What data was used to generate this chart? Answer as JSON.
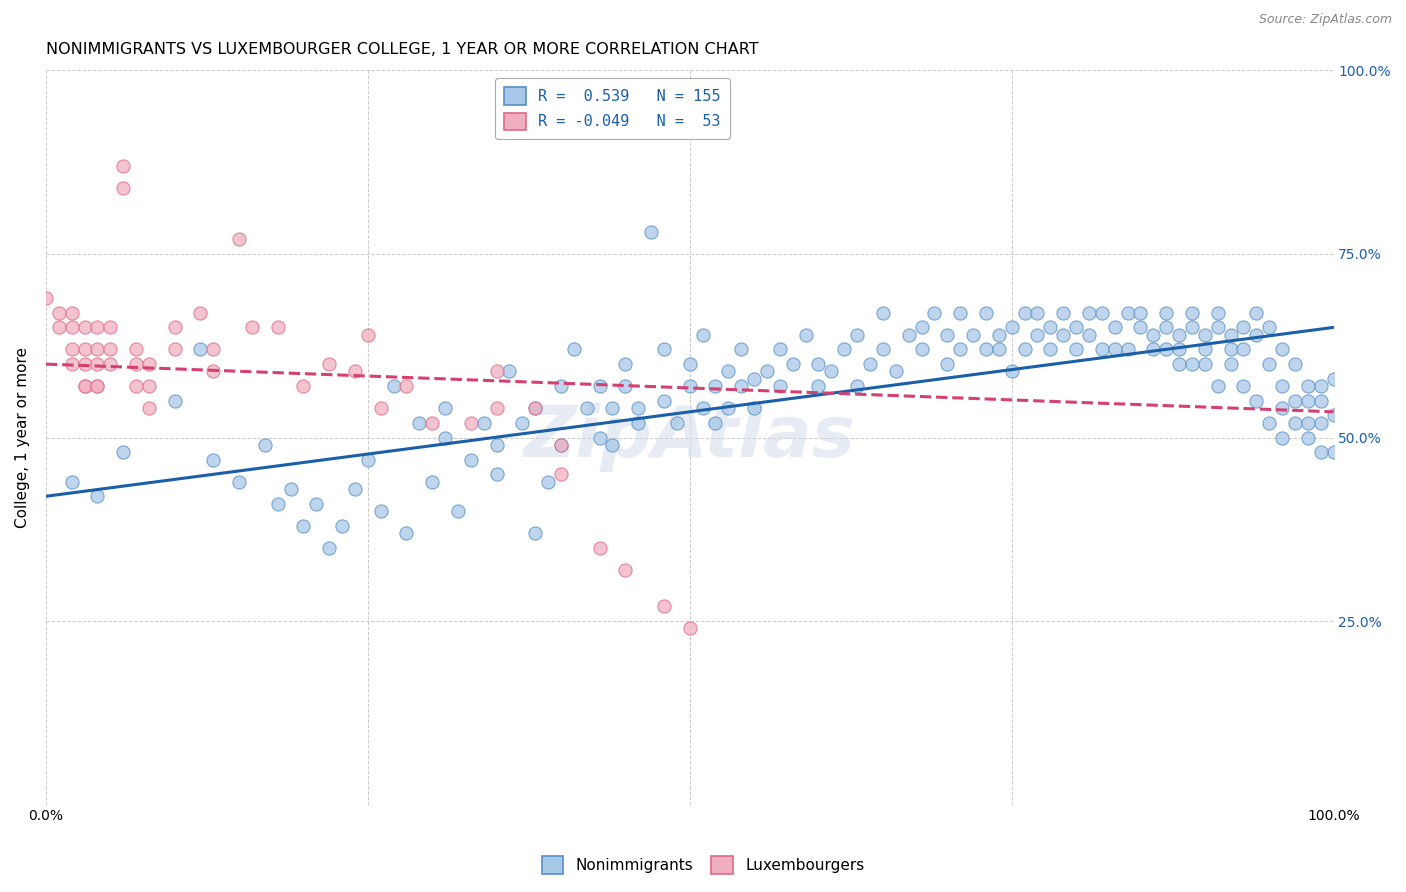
{
  "title": "NONIMMIGRANTS VS LUXEMBOURGER COLLEGE, 1 YEAR OR MORE CORRELATION CHART",
  "source": "Source: ZipAtlas.com",
  "ylabel": "College, 1 year or more",
  "xlim": [
    0,
    1
  ],
  "ylim": [
    0,
    1
  ],
  "xtick_positions": [
    0.0,
    0.25,
    0.5,
    0.75,
    1.0
  ],
  "xtick_labels": [
    "0.0%",
    "",
    "",
    "",
    "100.0%"
  ],
  "ytick_positions": [
    0.0,
    0.25,
    0.5,
    0.75,
    1.0
  ],
  "ytick_labels_right": [
    "",
    "25.0%",
    "50.0%",
    "75.0%",
    "100.0%"
  ],
  "watermark": "ZipAtlas",
  "blue_intercept": 0.42,
  "blue_slope": 0.23,
  "pink_intercept": 0.6,
  "pink_slope": -0.065,
  "blue_line_color": "#1a5fa8",
  "pink_line_color": "#d44070",
  "blue_dot_color": "#a8c8e8",
  "pink_dot_color": "#f0afc0",
  "blue_dot_edge": "#5590c8",
  "pink_dot_edge": "#e06888",
  "grid_color": "#cccccc",
  "background_color": "#ffffff",
  "title_fontsize": 11.5,
  "axis_label_fontsize": 11,
  "tick_fontsize": 10,
  "dot_size": 90,
  "dot_alpha": 0.75,
  "line_width": 2.2,
  "blue_dots": [
    [
      0.02,
      0.44
    ],
    [
      0.04,
      0.42
    ],
    [
      0.06,
      0.48
    ],
    [
      0.1,
      0.55
    ],
    [
      0.12,
      0.62
    ],
    [
      0.13,
      0.47
    ],
    [
      0.15,
      0.44
    ],
    [
      0.17,
      0.49
    ],
    [
      0.18,
      0.41
    ],
    [
      0.19,
      0.43
    ],
    [
      0.2,
      0.38
    ],
    [
      0.21,
      0.41
    ],
    [
      0.22,
      0.35
    ],
    [
      0.23,
      0.38
    ],
    [
      0.24,
      0.43
    ],
    [
      0.25,
      0.47
    ],
    [
      0.26,
      0.4
    ],
    [
      0.27,
      0.57
    ],
    [
      0.28,
      0.37
    ],
    [
      0.29,
      0.52
    ],
    [
      0.3,
      0.44
    ],
    [
      0.31,
      0.5
    ],
    [
      0.31,
      0.54
    ],
    [
      0.32,
      0.4
    ],
    [
      0.33,
      0.47
    ],
    [
      0.34,
      0.52
    ],
    [
      0.35,
      0.49
    ],
    [
      0.35,
      0.45
    ],
    [
      0.36,
      0.59
    ],
    [
      0.37,
      0.52
    ],
    [
      0.38,
      0.54
    ],
    [
      0.38,
      0.37
    ],
    [
      0.39,
      0.44
    ],
    [
      0.4,
      0.49
    ],
    [
      0.4,
      0.57
    ],
    [
      0.41,
      0.62
    ],
    [
      0.42,
      0.54
    ],
    [
      0.43,
      0.5
    ],
    [
      0.43,
      0.57
    ],
    [
      0.44,
      0.49
    ],
    [
      0.44,
      0.54
    ],
    [
      0.45,
      0.57
    ],
    [
      0.45,
      0.6
    ],
    [
      0.46,
      0.52
    ],
    [
      0.46,
      0.54
    ],
    [
      0.47,
      0.78
    ],
    [
      0.48,
      0.55
    ],
    [
      0.48,
      0.62
    ],
    [
      0.49,
      0.52
    ],
    [
      0.5,
      0.57
    ],
    [
      0.5,
      0.6
    ],
    [
      0.51,
      0.54
    ],
    [
      0.51,
      0.64
    ],
    [
      0.52,
      0.52
    ],
    [
      0.52,
      0.57
    ],
    [
      0.53,
      0.59
    ],
    [
      0.53,
      0.54
    ],
    [
      0.54,
      0.57
    ],
    [
      0.54,
      0.62
    ],
    [
      0.55,
      0.58
    ],
    [
      0.55,
      0.54
    ],
    [
      0.56,
      0.59
    ],
    [
      0.57,
      0.57
    ],
    [
      0.57,
      0.62
    ],
    [
      0.58,
      0.6
    ],
    [
      0.59,
      0.64
    ],
    [
      0.6,
      0.57
    ],
    [
      0.6,
      0.6
    ],
    [
      0.61,
      0.59
    ],
    [
      0.62,
      0.62
    ],
    [
      0.63,
      0.57
    ],
    [
      0.63,
      0.64
    ],
    [
      0.64,
      0.6
    ],
    [
      0.65,
      0.62
    ],
    [
      0.65,
      0.67
    ],
    [
      0.66,
      0.59
    ],
    [
      0.67,
      0.64
    ],
    [
      0.68,
      0.62
    ],
    [
      0.68,
      0.65
    ],
    [
      0.69,
      0.67
    ],
    [
      0.7,
      0.6
    ],
    [
      0.7,
      0.64
    ],
    [
      0.71,
      0.62
    ],
    [
      0.71,
      0.67
    ],
    [
      0.72,
      0.64
    ],
    [
      0.73,
      0.62
    ],
    [
      0.73,
      0.67
    ],
    [
      0.74,
      0.64
    ],
    [
      0.74,
      0.62
    ],
    [
      0.75,
      0.65
    ],
    [
      0.75,
      0.59
    ],
    [
      0.76,
      0.67
    ],
    [
      0.76,
      0.62
    ],
    [
      0.77,
      0.64
    ],
    [
      0.77,
      0.67
    ],
    [
      0.78,
      0.62
    ],
    [
      0.78,
      0.65
    ],
    [
      0.79,
      0.64
    ],
    [
      0.79,
      0.67
    ],
    [
      0.8,
      0.62
    ],
    [
      0.8,
      0.65
    ],
    [
      0.81,
      0.67
    ],
    [
      0.81,
      0.64
    ],
    [
      0.82,
      0.62
    ],
    [
      0.82,
      0.67
    ],
    [
      0.83,
      0.65
    ],
    [
      0.83,
      0.62
    ],
    [
      0.84,
      0.67
    ],
    [
      0.84,
      0.62
    ],
    [
      0.85,
      0.65
    ],
    [
      0.85,
      0.67
    ],
    [
      0.86,
      0.64
    ],
    [
      0.86,
      0.62
    ],
    [
      0.87,
      0.65
    ],
    [
      0.87,
      0.67
    ],
    [
      0.88,
      0.64
    ],
    [
      0.88,
      0.62
    ],
    [
      0.89,
      0.65
    ],
    [
      0.89,
      0.67
    ],
    [
      0.9,
      0.64
    ],
    [
      0.9,
      0.62
    ],
    [
      0.91,
      0.65
    ],
    [
      0.91,
      0.67
    ],
    [
      0.92,
      0.64
    ],
    [
      0.92,
      0.62
    ],
    [
      0.93,
      0.65
    ],
    [
      0.93,
      0.62
    ],
    [
      0.94,
      0.64
    ],
    [
      0.94,
      0.67
    ],
    [
      0.95,
      0.6
    ],
    [
      0.95,
      0.65
    ],
    [
      0.96,
      0.62
    ],
    [
      0.96,
      0.57
    ],
    [
      0.97,
      0.55
    ],
    [
      0.97,
      0.6
    ],
    [
      0.98,
      0.55
    ],
    [
      0.98,
      0.52
    ],
    [
      0.98,
      0.57
    ],
    [
      0.99,
      0.52
    ],
    [
      0.99,
      0.55
    ],
    [
      0.99,
      0.57
    ],
    [
      1.0,
      0.48
    ],
    [
      1.0,
      0.53
    ],
    [
      1.0,
      0.58
    ],
    [
      0.99,
      0.48
    ],
    [
      0.98,
      0.5
    ],
    [
      0.97,
      0.52
    ],
    [
      0.96,
      0.5
    ],
    [
      0.96,
      0.54
    ],
    [
      0.95,
      0.52
    ],
    [
      0.94,
      0.55
    ],
    [
      0.93,
      0.57
    ],
    [
      0.92,
      0.6
    ],
    [
      0.91,
      0.57
    ],
    [
      0.9,
      0.6
    ],
    [
      0.89,
      0.6
    ],
    [
      0.88,
      0.6
    ],
    [
      0.87,
      0.62
    ]
  ],
  "pink_dots": [
    [
      0.0,
      0.69
    ],
    [
      0.01,
      0.65
    ],
    [
      0.01,
      0.67
    ],
    [
      0.02,
      0.62
    ],
    [
      0.02,
      0.65
    ],
    [
      0.02,
      0.67
    ],
    [
      0.02,
      0.6
    ],
    [
      0.03,
      0.57
    ],
    [
      0.03,
      0.6
    ],
    [
      0.03,
      0.62
    ],
    [
      0.03,
      0.65
    ],
    [
      0.03,
      0.57
    ],
    [
      0.04,
      0.57
    ],
    [
      0.04,
      0.6
    ],
    [
      0.04,
      0.62
    ],
    [
      0.04,
      0.65
    ],
    [
      0.04,
      0.57
    ],
    [
      0.05,
      0.6
    ],
    [
      0.05,
      0.62
    ],
    [
      0.05,
      0.65
    ],
    [
      0.06,
      0.84
    ],
    [
      0.06,
      0.87
    ],
    [
      0.07,
      0.57
    ],
    [
      0.07,
      0.6
    ],
    [
      0.07,
      0.62
    ],
    [
      0.08,
      0.54
    ],
    [
      0.08,
      0.57
    ],
    [
      0.08,
      0.6
    ],
    [
      0.1,
      0.62
    ],
    [
      0.1,
      0.65
    ],
    [
      0.12,
      0.67
    ],
    [
      0.13,
      0.59
    ],
    [
      0.13,
      0.62
    ],
    [
      0.15,
      0.77
    ],
    [
      0.16,
      0.65
    ],
    [
      0.18,
      0.65
    ],
    [
      0.2,
      0.57
    ],
    [
      0.22,
      0.6
    ],
    [
      0.24,
      0.59
    ],
    [
      0.25,
      0.64
    ],
    [
      0.26,
      0.54
    ],
    [
      0.28,
      0.57
    ],
    [
      0.3,
      0.52
    ],
    [
      0.33,
      0.52
    ],
    [
      0.35,
      0.59
    ],
    [
      0.35,
      0.54
    ],
    [
      0.38,
      0.54
    ],
    [
      0.4,
      0.45
    ],
    [
      0.4,
      0.49
    ],
    [
      0.43,
      0.35
    ],
    [
      0.45,
      0.32
    ],
    [
      0.48,
      0.27
    ],
    [
      0.5,
      0.24
    ]
  ]
}
